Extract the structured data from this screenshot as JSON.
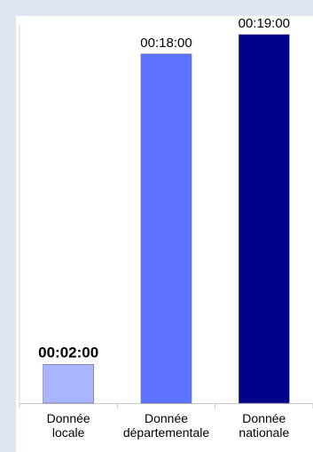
{
  "chart_data": {
    "type": "bar",
    "categories": [
      {
        "line1": "Donnée",
        "line2": "locale"
      },
      {
        "line1": "Donnée",
        "line2": "départementale"
      },
      {
        "line1": "Donnée",
        "line2": "nationale"
      }
    ],
    "values": [
      2,
      18,
      19
    ],
    "value_unit": "minutes",
    "data_labels": [
      "00:02:00",
      "00:18:00",
      "00:19:00"
    ],
    "data_label_bold": [
      true,
      false,
      false
    ],
    "colors": [
      "#aab4ff",
      "#5b73ff",
      "#000088"
    ],
    "ylim": [
      0,
      19.5
    ],
    "grid": false,
    "legend": "none",
    "title": "",
    "xlabel": "",
    "ylabel": ""
  }
}
